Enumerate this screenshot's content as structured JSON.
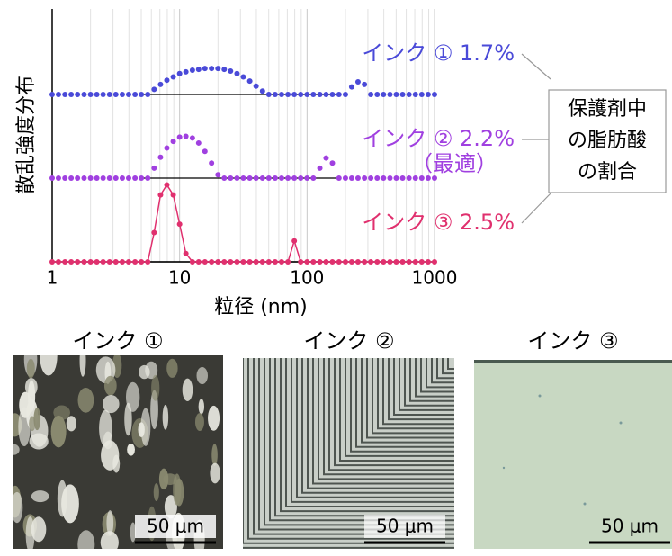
{
  "chart_data": {
    "type": "line",
    "ylabel": "散乱強度分布",
    "xlabel": "粒径 (nm)",
    "log_x": true,
    "grid": true,
    "xlim": [
      1,
      1000
    ],
    "ylim": [
      0,
      1
    ],
    "xticks": [
      1,
      10,
      100,
      1000
    ],
    "xminorticks": [
      2,
      3,
      4,
      5,
      6,
      7,
      8,
      9,
      20,
      30,
      40,
      50,
      60,
      70,
      80,
      90,
      200,
      300,
      400,
      500,
      600,
      700,
      800,
      900
    ],
    "x": [
      1,
      1.12,
      1.26,
      1.41,
      1.58,
      1.78,
      2,
      2.24,
      2.51,
      2.82,
      3.16,
      3.55,
      3.98,
      4.47,
      5.01,
      5.62,
      6.31,
      7.08,
      7.94,
      8.91,
      10,
      11.2,
      12.6,
      14.1,
      15.8,
      17.8,
      20,
      22.4,
      25.1,
      28.2,
      31.6,
      35.5,
      39.8,
      44.7,
      50.1,
      56.2,
      63.1,
      70.8,
      79.4,
      89.1,
      100,
      112,
      126,
      141,
      158,
      178,
      200,
      224,
      251,
      282,
      316,
      355,
      398,
      447,
      501,
      562,
      631,
      708,
      794,
      891,
      1000
    ],
    "series": [
      {
        "name": "インク ① 1.7%",
        "color": "#4a4ad8",
        "connect": false,
        "values": [
          0,
          0,
          0,
          0,
          0,
          0,
          0,
          0,
          0,
          0,
          0,
          0,
          0,
          0,
          0,
          0,
          0.06,
          0.12,
          0.17,
          0.21,
          0.25,
          0.27,
          0.29,
          0.3,
          0.31,
          0.31,
          0.31,
          0.3,
          0.28,
          0.25,
          0.21,
          0.16,
          0.1,
          0.04,
          0,
          0,
          0,
          0,
          0,
          0,
          0,
          0,
          0,
          0,
          0,
          0,
          0,
          0.09,
          0.15,
          0.12,
          0,
          0,
          0,
          0,
          0,
          0,
          0,
          0,
          0,
          0,
          0
        ]
      },
      {
        "name": "インク ② 2.2%",
        "color": "#a040e0",
        "connect": false,
        "note": "（最適）",
        "values": [
          0,
          0,
          0,
          0,
          0,
          0,
          0,
          0,
          0,
          0,
          0,
          0,
          0,
          0,
          0,
          0,
          0.12,
          0.25,
          0.36,
          0.44,
          0.49,
          0.5,
          0.48,
          0.42,
          0.32,
          0.18,
          0.04,
          0,
          0,
          0,
          0,
          0,
          0,
          0,
          0,
          0,
          0,
          0,
          0,
          0,
          0,
          0,
          0.12,
          0.24,
          0.18,
          0,
          0,
          0,
          0,
          0,
          0,
          0,
          0,
          0,
          0,
          0,
          0,
          0,
          0,
          0,
          0
        ]
      },
      {
        "name": "インク ③ 2.5%",
        "color": "#e0306e",
        "connect": true,
        "values": [
          0,
          0,
          0,
          0,
          0,
          0,
          0,
          0,
          0,
          0,
          0,
          0,
          0,
          0,
          0,
          0,
          0.35,
          0.8,
          0.92,
          0.8,
          0.45,
          0.1,
          0,
          0,
          0,
          0,
          0,
          0,
          0,
          0,
          0,
          0,
          0,
          0,
          0,
          0,
          0,
          0,
          0.25,
          0,
          0,
          0,
          0,
          0,
          0,
          0,
          0,
          0,
          0,
          0,
          0,
          0,
          0,
          0,
          0,
          0,
          0,
          0,
          0,
          0,
          0
        ]
      }
    ],
    "legend_box": [
      "保護剤中",
      "の脂肪酸",
      "の割合"
    ]
  },
  "images": [
    {
      "caption": "インク ①",
      "scale": "50 μm"
    },
    {
      "caption": "インク ②",
      "scale": "50 μm"
    },
    {
      "caption": "インク ③",
      "scale": "50 μm"
    }
  ]
}
